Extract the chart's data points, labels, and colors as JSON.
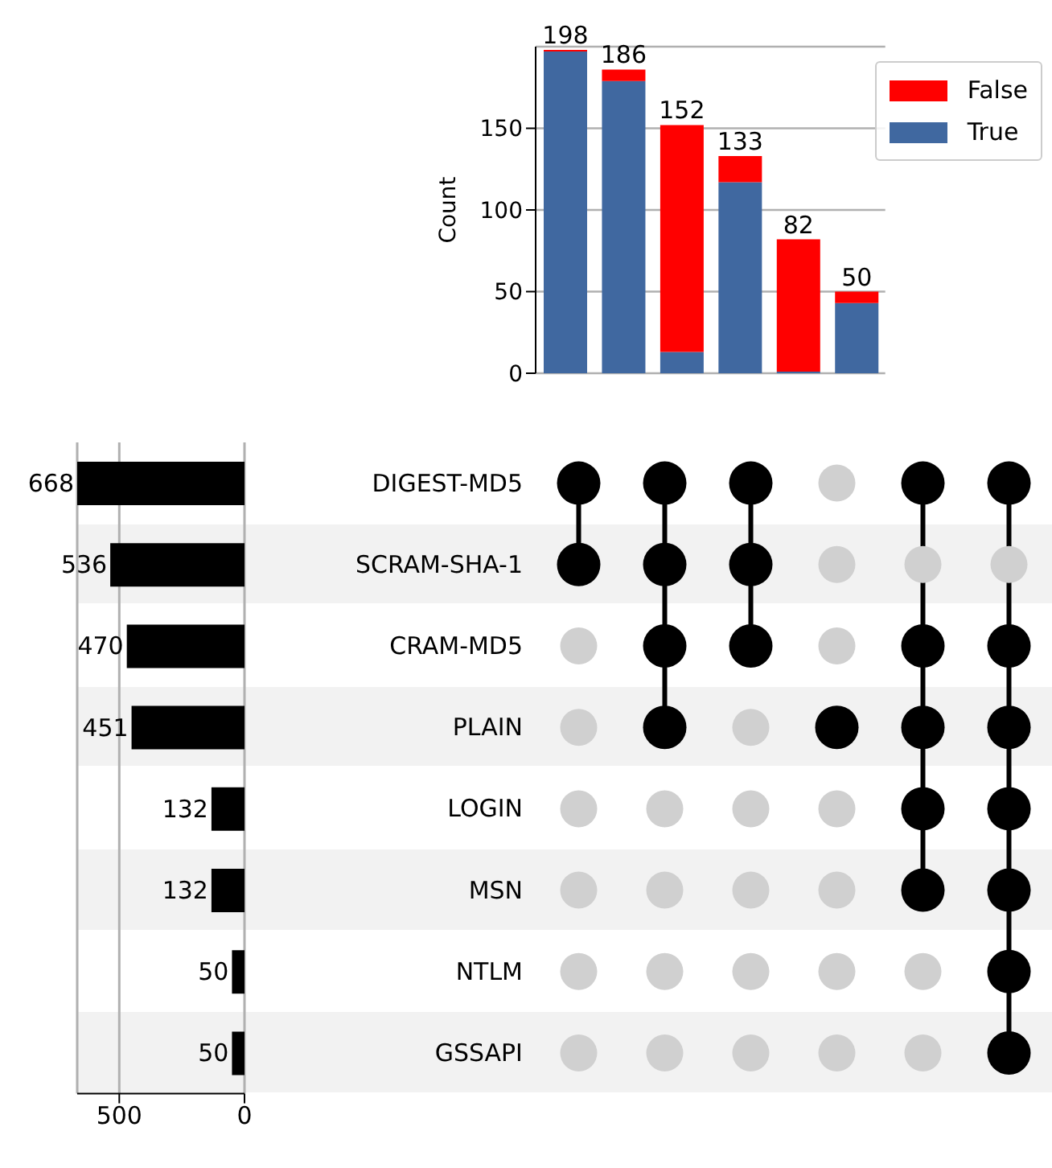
{
  "chart_data": [
    {
      "type": "bar",
      "ylabel": "Count",
      "categories": [
        null,
        null,
        null,
        null,
        null,
        null
      ],
      "stacked": true,
      "series": [
        {
          "name": "True",
          "color": "#4068a0",
          "values": [
            197,
            179,
            13,
            117,
            1,
            43
          ]
        },
        {
          "name": "False",
          "color": "#ff0000",
          "values": [
            1,
            7,
            139,
            16,
            81,
            7
          ]
        }
      ],
      "totals": [
        "198",
        "186",
        "152",
        "133",
        "82",
        "50"
      ],
      "ylim": [
        0,
        200
      ],
      "yticks": [
        0,
        50,
        100,
        150
      ],
      "grid": "y",
      "legend": "top right"
    },
    {
      "type": "bar",
      "orientation": "horizontal",
      "categories": [
        "DIGEST-MD5",
        "SCRAM-SHA-1",
        "CRAM-MD5",
        "PLAIN",
        "LOGIN",
        "MSN",
        "NTLM",
        "GSSAPI"
      ],
      "values": [
        668,
        536,
        470,
        451,
        132,
        132,
        50,
        50
      ],
      "color": "#000000",
      "data_labels": true,
      "xlim": [
        668,
        0
      ],
      "xticks": [
        500,
        0
      ],
      "grid": "x"
    }
  ]
}
